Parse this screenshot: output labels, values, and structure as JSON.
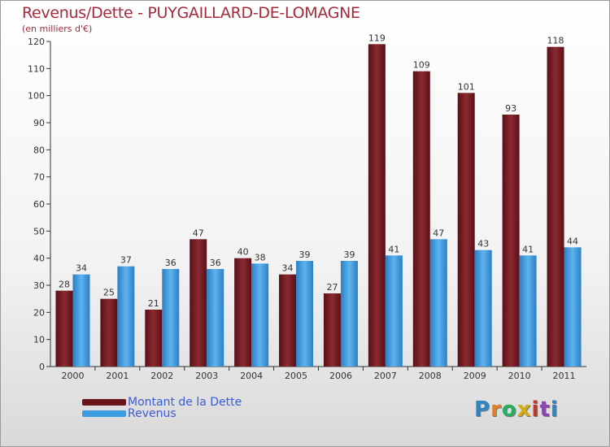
{
  "chart_data": {
    "type": "bar",
    "title": "Revenus/Dette - PUYGAILLARD-DE-LOMAGNE",
    "subtitle": "(en milliers d'€)",
    "categories": [
      "2000",
      "2001",
      "2002",
      "2003",
      "2004",
      "2005",
      "2006",
      "2007",
      "2008",
      "2009",
      "2010",
      "2011"
    ],
    "series": [
      {
        "name": "Montant de la Dette",
        "color": "#7a1a22",
        "values": [
          28,
          25,
          21,
          47,
          40,
          34,
          27,
          119,
          109,
          101,
          93,
          118
        ]
      },
      {
        "name": "Revenus",
        "color": "#3d9be0",
        "values": [
          34,
          37,
          36,
          36,
          38,
          39,
          39,
          41,
          47,
          43,
          41,
          44
        ]
      }
    ],
    "ylim": [
      0,
      120
    ],
    "yticks": [
      0,
      10,
      20,
      30,
      40,
      50,
      60,
      70,
      80,
      90,
      100,
      110,
      120
    ],
    "grid": false,
    "legend_position": "bottom-left"
  },
  "logo": {
    "letters": [
      "P",
      "r",
      "o",
      "x",
      "i",
      "t",
      "i"
    ],
    "colors": [
      "#2e86c1",
      "#e67e22",
      "#27ae60",
      "#d4ac0d",
      "#c0392b",
      "#8e44ad",
      "#2e86c1"
    ]
  }
}
